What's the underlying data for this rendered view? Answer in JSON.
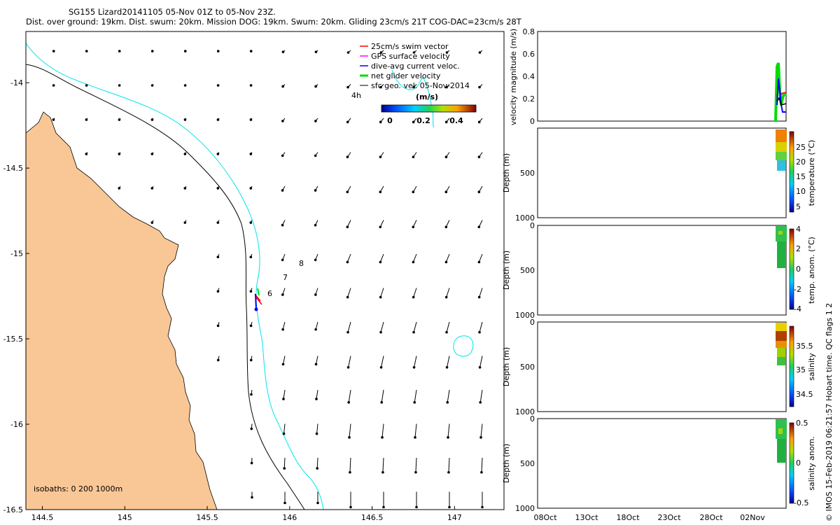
{
  "header": {
    "title_line1": "SG155 Lizard20141105 05-Nov 01Z to 05-Nov 23Z.",
    "title_line2": "Dist. over ground: 19km. Dist. swum: 20km. Mission DOG: 19km. Swum: 20km. Gliding 23cm/s 21T COG-DAC=23cm/s 28T"
  },
  "map": {
    "x_ticks": [
      "144.5",
      "145",
      "145.5",
      "146",
      "146.5",
      "147"
    ],
    "y_ticks": [
      "-14",
      "-14.5",
      "-15",
      "-15.5",
      "-16",
      "-16.5"
    ],
    "xlim": [
      144.4,
      147.3
    ],
    "ylim": [
      -16.5,
      -13.7
    ],
    "legend": [
      {
        "label": "25cm/s swim vector",
        "color": "#ff0000"
      },
      {
        "label": "GPS surface velocity",
        "color": "#ff00ff"
      },
      {
        "label": "dive-avg current veloc.",
        "color": "#0000ff"
      },
      {
        "label": "net glider velocity",
        "color": "#00dd00"
      },
      {
        "label": "sfc geo. vel. 05-Nov-2014",
        "color": "#000000"
      }
    ],
    "colorbar_label": "(m/s)",
    "colorbar_ticks": [
      "0",
      "0.2",
      "0.4"
    ],
    "isobaths_label": "isobaths: 0   200  1000m",
    "hour_labels": [
      "4h",
      "6",
      "7",
      "8"
    ],
    "colors": {
      "land": "#f9c796",
      "isobath_200": "#00e5ee",
      "isobath_coast": "#000000"
    }
  },
  "panels": {
    "x_ticks": [
      "08Oct",
      "13Oct",
      "18Oct",
      "23Oct",
      "28Oct",
      "02Nov"
    ],
    "velocity": {
      "ylabel": "velocity magnitude (m/s)",
      "yticks": [
        "0",
        "0.2",
        "0.4",
        "0.6",
        "0.8"
      ]
    },
    "temperature": {
      "ylabel": "Depth (m)",
      "cbar_label": "temperature (°C)",
      "yticks": [
        "500",
        "1000"
      ],
      "cbar_ticks": [
        "25",
        "20",
        "15",
        "10",
        "5"
      ]
    },
    "temp_anom": {
      "ylabel": "Depth (m)",
      "cbar_label": "temp. anom. (°C)",
      "yticks": [
        "0",
        "500",
        "1000"
      ],
      "cbar_ticks": [
        "4",
        "2",
        "0",
        "-2",
        "-4"
      ]
    },
    "salinity": {
      "ylabel": "Depth (m)",
      "cbar_label": "salinity",
      "yticks": [
        "0",
        "500",
        "1000"
      ],
      "cbar_ticks": [
        "35.5",
        "35",
        "34.5"
      ]
    },
    "sal_anom": {
      "ylabel": "Depth (m)",
      "cbar_label": "salinity anom.",
      "yticks": [
        "0",
        "500",
        "1000"
      ],
      "cbar_ticks": [
        "0.5",
        "0",
        "-0.5"
      ]
    }
  },
  "copyright": "© IMOS 15-Feb-2019 06:21:57 Hobart time. QC flags 1  2",
  "chart_data": [
    {
      "type": "scatter",
      "title": "SG155 Lizard20141105 05-Nov 01Z to 05-Nov 23Z.",
      "xlim": [
        144.4,
        147.3
      ],
      "ylim": [
        -16.5,
        -13.7
      ],
      "series": [
        {
          "name": "25cm/s swim vector",
          "x": [
            145.81
          ],
          "y": [
            -15.28
          ]
        },
        {
          "name": "dive-avg current veloc.",
          "x": [
            145.81
          ],
          "y": [
            -15.3
          ]
        },
        {
          "name": "net glider velocity",
          "x": [
            145.82
          ],
          "y": [
            -15.24
          ]
        }
      ]
    },
    {
      "type": "line",
      "xlabel": "",
      "ylabel": "velocity magnitude (m/s)",
      "ylim": [
        0,
        0.8
      ],
      "series": [
        {
          "name": "net glider velocity",
          "values": [
            0.05,
            0.5,
            0.35,
            0.2,
            0.25,
            0.25
          ]
        },
        {
          "name": "dive-avg current veloc.",
          "values": [
            0.1,
            0.38,
            0.2,
            0.15,
            0.1,
            0.1
          ]
        }
      ]
    }
  ]
}
